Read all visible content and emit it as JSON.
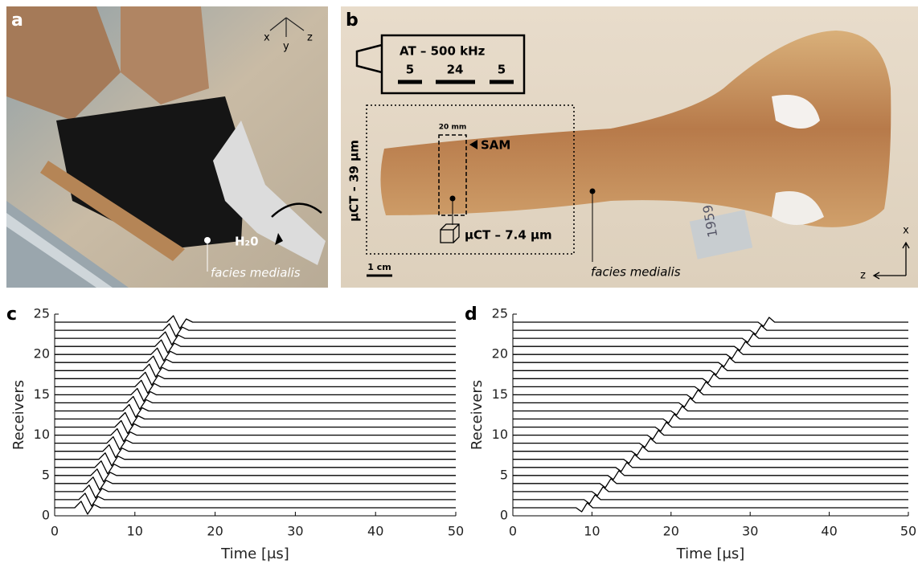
{
  "figure": {
    "a": {
      "label": "a",
      "axes": [
        "x",
        "y",
        "z"
      ],
      "medium": "H₂0",
      "annotation": "facies medialis"
    },
    "b": {
      "label": "b",
      "transducer": "AT – 500 kHz",
      "elements": [
        5,
        24,
        5
      ],
      "roi_size": "20 mm",
      "sam": "SAM",
      "ct_large": "μCT - 39 μm",
      "ct_small": "μCT – 7.4 μm",
      "scale": "1 cm",
      "annotation": "facies medialis",
      "tag": "1959",
      "axes": [
        "x",
        "z"
      ]
    }
  },
  "chart_data": [
    {
      "type": "line",
      "panel_label": "c",
      "x_label": "Time [μs]",
      "y_label": "Receivers",
      "xlim": [
        0,
        50
      ],
      "ylim": [
        0,
        25
      ],
      "xticks": [
        0,
        10,
        20,
        30,
        40,
        50
      ],
      "yticks": [
        0,
        5,
        10,
        15,
        20,
        25
      ],
      "color": "#000000",
      "series": [
        {
          "x": [
            0,
            2.5,
            3.3,
            4.1,
            4.9,
            5.7,
            50
          ],
          "values": [
            1,
            1,
            1.8,
            0.2,
            1.4,
            1,
            1
          ]
        },
        {
          "x": [
            0,
            3,
            3.8,
            4.6,
            5.4,
            6.2,
            50
          ],
          "values": [
            2,
            2,
            2.8,
            1.2,
            2.4,
            2,
            2
          ]
        },
        {
          "x": [
            0,
            3.5,
            4.3,
            5.1,
            5.9,
            6.7,
            50
          ],
          "values": [
            3,
            3,
            3.8,
            2.2,
            3.4,
            3,
            3
          ]
        },
        {
          "x": [
            0,
            4,
            4.8,
            5.6,
            6.4,
            7.2,
            50
          ],
          "values": [
            4,
            4,
            4.8,
            3.2,
            4.4,
            4,
            4
          ]
        },
        {
          "x": [
            0,
            4.5,
            5.3,
            6.1,
            6.9,
            7.7,
            50
          ],
          "values": [
            5,
            5,
            5.8,
            4.2,
            5.4,
            5,
            5
          ]
        },
        {
          "x": [
            0,
            5,
            5.8,
            6.6,
            7.4,
            8.2,
            50
          ],
          "values": [
            6,
            6,
            6.8,
            5.2,
            6.4,
            6,
            6
          ]
        },
        {
          "x": [
            0,
            5.5,
            6.3,
            7.1,
            7.9,
            8.7,
            50
          ],
          "values": [
            7,
            7,
            7.8,
            6.2,
            7.4,
            7,
            7
          ]
        },
        {
          "x": [
            0,
            6,
            6.8,
            7.6,
            8.4,
            9.2,
            50
          ],
          "values": [
            8,
            8,
            8.8,
            7.2,
            8.4,
            8,
            8
          ]
        },
        {
          "x": [
            0,
            6.5,
            7.3,
            8.1,
            8.9,
            9.7,
            50
          ],
          "values": [
            9,
            9,
            9.8,
            8.2,
            9.4,
            9,
            9
          ]
        },
        {
          "x": [
            0,
            7,
            7.8,
            8.6,
            9.4,
            10.2,
            50
          ],
          "values": [
            10,
            10,
            10.8,
            9.2,
            10.4,
            10,
            10
          ]
        },
        {
          "x": [
            0,
            7.5,
            8.3,
            9.1,
            9.9,
            10.7,
            50
          ],
          "values": [
            11,
            11,
            11.8,
            10.2,
            11.4,
            11,
            11
          ]
        },
        {
          "x": [
            0,
            8,
            8.8,
            9.6,
            10.4,
            11.2,
            50
          ],
          "values": [
            12,
            12,
            12.8,
            11.2,
            12.4,
            12,
            12
          ]
        },
        {
          "x": [
            0,
            8.5,
            9.3,
            10.1,
            10.9,
            11.7,
            50
          ],
          "values": [
            13,
            13,
            13.8,
            12.2,
            13.4,
            13,
            13
          ]
        },
        {
          "x": [
            0,
            9,
            9.8,
            10.6,
            11.4,
            12.2,
            50
          ],
          "values": [
            14,
            14,
            14.8,
            13.2,
            14.4,
            14,
            14
          ]
        },
        {
          "x": [
            0,
            9.5,
            10.3,
            11.1,
            11.9,
            12.7,
            50
          ],
          "values": [
            15,
            15,
            15.8,
            14.2,
            15.4,
            15,
            15
          ]
        },
        {
          "x": [
            0,
            10,
            10.8,
            11.6,
            12.4,
            13.2,
            50
          ],
          "values": [
            16,
            16,
            16.8,
            15.2,
            16.4,
            16,
            16
          ]
        },
        {
          "x": [
            0,
            10.5,
            11.3,
            12.1,
            12.9,
            13.7,
            50
          ],
          "values": [
            17,
            17,
            17.8,
            16.2,
            17.4,
            17,
            17
          ]
        },
        {
          "x": [
            0,
            11,
            11.8,
            12.6,
            13.4,
            14.2,
            50
          ],
          "values": [
            18,
            18,
            18.8,
            17.2,
            18.4,
            18,
            18
          ]
        },
        {
          "x": [
            0,
            11.5,
            12.3,
            13.1,
            13.9,
            14.7,
            50
          ],
          "values": [
            19,
            19,
            19.8,
            18.2,
            19.4,
            19,
            19
          ]
        },
        {
          "x": [
            0,
            12,
            12.8,
            13.6,
            14.4,
            15.2,
            50
          ],
          "values": [
            20,
            20,
            20.8,
            19.2,
            20.4,
            20,
            20
          ]
        },
        {
          "x": [
            0,
            12.5,
            13.3,
            14.1,
            14.9,
            15.7,
            50
          ],
          "values": [
            21,
            21,
            21.8,
            20.2,
            21.4,
            21,
            21
          ]
        },
        {
          "x": [
            0,
            13,
            13.8,
            14.6,
            15.4,
            16.2,
            50
          ],
          "values": [
            22,
            22,
            22.8,
            21.2,
            22.4,
            22,
            22
          ]
        },
        {
          "x": [
            0,
            13.5,
            14.3,
            15.1,
            15.9,
            16.7,
            50
          ],
          "values": [
            23,
            23,
            23.8,
            22.2,
            23.4,
            23,
            23
          ]
        },
        {
          "x": [
            0,
            14,
            14.8,
            15.6,
            16.4,
            17.2,
            50
          ],
          "values": [
            24,
            24,
            24.8,
            23.2,
            24.4,
            24,
            24
          ]
        }
      ]
    },
    {
      "type": "line",
      "panel_label": "d",
      "x_label": "Time [μs]",
      "y_label": "Receivers",
      "xlim": [
        0,
        50
      ],
      "ylim": [
        0,
        25
      ],
      "xticks": [
        0,
        10,
        20,
        30,
        40,
        50
      ],
      "yticks": [
        0,
        5,
        10,
        15,
        20,
        25
      ],
      "color": "#000000",
      "series": [
        {
          "x": [
            0,
            8,
            8.7,
            9.4,
            10.1,
            50
          ],
          "values": [
            1,
            1,
            0.5,
            1.6,
            1,
            1
          ]
        },
        {
          "x": [
            0,
            9,
            9.7,
            10.4,
            11.1,
            50
          ],
          "values": [
            2,
            2,
            1.5,
            2.6,
            2,
            2
          ]
        },
        {
          "x": [
            0,
            10,
            10.7,
            11.4,
            12.1,
            50
          ],
          "values": [
            3,
            3,
            2.5,
            3.6,
            3,
            3
          ]
        },
        {
          "x": [
            0,
            11,
            11.7,
            12.4,
            13.1,
            50
          ],
          "values": [
            4,
            4,
            3.5,
            4.6,
            4,
            4
          ]
        },
        {
          "x": [
            0,
            12,
            12.7,
            13.4,
            14.1,
            50
          ],
          "values": [
            5,
            5,
            4.5,
            5.6,
            5,
            5
          ]
        },
        {
          "x": [
            0,
            13,
            13.7,
            14.4,
            15.1,
            50
          ],
          "values": [
            6,
            6,
            5.5,
            6.6,
            6,
            6
          ]
        },
        {
          "x": [
            0,
            14,
            14.7,
            15.4,
            16.1,
            50
          ],
          "values": [
            7,
            7,
            6.5,
            7.6,
            7,
            7
          ]
        },
        {
          "x": [
            0,
            15,
            15.7,
            16.4,
            17.1,
            50
          ],
          "values": [
            8,
            8,
            7.5,
            8.6,
            8,
            8
          ]
        },
        {
          "x": [
            0,
            16,
            16.7,
            17.4,
            18.1,
            50
          ],
          "values": [
            9,
            9,
            8.5,
            9.6,
            9,
            9
          ]
        },
        {
          "x": [
            0,
            17,
            17.7,
            18.4,
            19.1,
            50
          ],
          "values": [
            10,
            10,
            9.5,
            10.6,
            10,
            10
          ]
        },
        {
          "x": [
            0,
            18,
            18.7,
            19.4,
            20.1,
            50
          ],
          "values": [
            11,
            11,
            10.5,
            11.6,
            11,
            11
          ]
        },
        {
          "x": [
            0,
            19,
            19.7,
            20.4,
            21.1,
            50
          ],
          "values": [
            12,
            12,
            11.5,
            12.6,
            12,
            12
          ]
        },
        {
          "x": [
            0,
            20,
            20.7,
            21.4,
            22.1,
            50
          ],
          "values": [
            13,
            13,
            12.5,
            13.6,
            13,
            13
          ]
        },
        {
          "x": [
            0,
            21,
            21.7,
            22.4,
            23.1,
            50
          ],
          "values": [
            14,
            14,
            13.5,
            14.6,
            14,
            14
          ]
        },
        {
          "x": [
            0,
            22,
            22.7,
            23.4,
            24.1,
            50
          ],
          "values": [
            15,
            15,
            14.5,
            15.6,
            15,
            15
          ]
        },
        {
          "x": [
            0,
            23,
            23.7,
            24.4,
            25.1,
            50
          ],
          "values": [
            16,
            16,
            15.5,
            16.6,
            16,
            16
          ]
        },
        {
          "x": [
            0,
            24,
            24.7,
            25.4,
            26.1,
            50
          ],
          "values": [
            17,
            17,
            16.5,
            17.6,
            17,
            17
          ]
        },
        {
          "x": [
            0,
            25,
            25.7,
            26.4,
            27.1,
            50
          ],
          "values": [
            18,
            18,
            17.5,
            18.6,
            18,
            18
          ]
        },
        {
          "x": [
            0,
            26,
            26.7,
            27.4,
            28.1,
            50
          ],
          "values": [
            19,
            19,
            18.5,
            19.6,
            19,
            19
          ]
        },
        {
          "x": [
            0,
            27,
            27.7,
            28.4,
            29.1,
            50
          ],
          "values": [
            20,
            20,
            19.5,
            20.6,
            20,
            20
          ]
        },
        {
          "x": [
            0,
            28,
            28.7,
            29.4,
            30.1,
            50
          ],
          "values": [
            21,
            21,
            20.5,
            21.6,
            21,
            21
          ]
        },
        {
          "x": [
            0,
            29,
            29.7,
            30.4,
            31.1,
            50
          ],
          "values": [
            22,
            22,
            21.5,
            22.6,
            22,
            22
          ]
        },
        {
          "x": [
            0,
            30,
            30.7,
            31.4,
            32.1,
            50
          ],
          "values": [
            23,
            23,
            22.5,
            23.6,
            23,
            23
          ]
        },
        {
          "x": [
            0,
            31,
            31.7,
            32.4,
            33.1,
            50
          ],
          "values": [
            24,
            24,
            23.5,
            24.6,
            24,
            24
          ]
        }
      ]
    }
  ]
}
